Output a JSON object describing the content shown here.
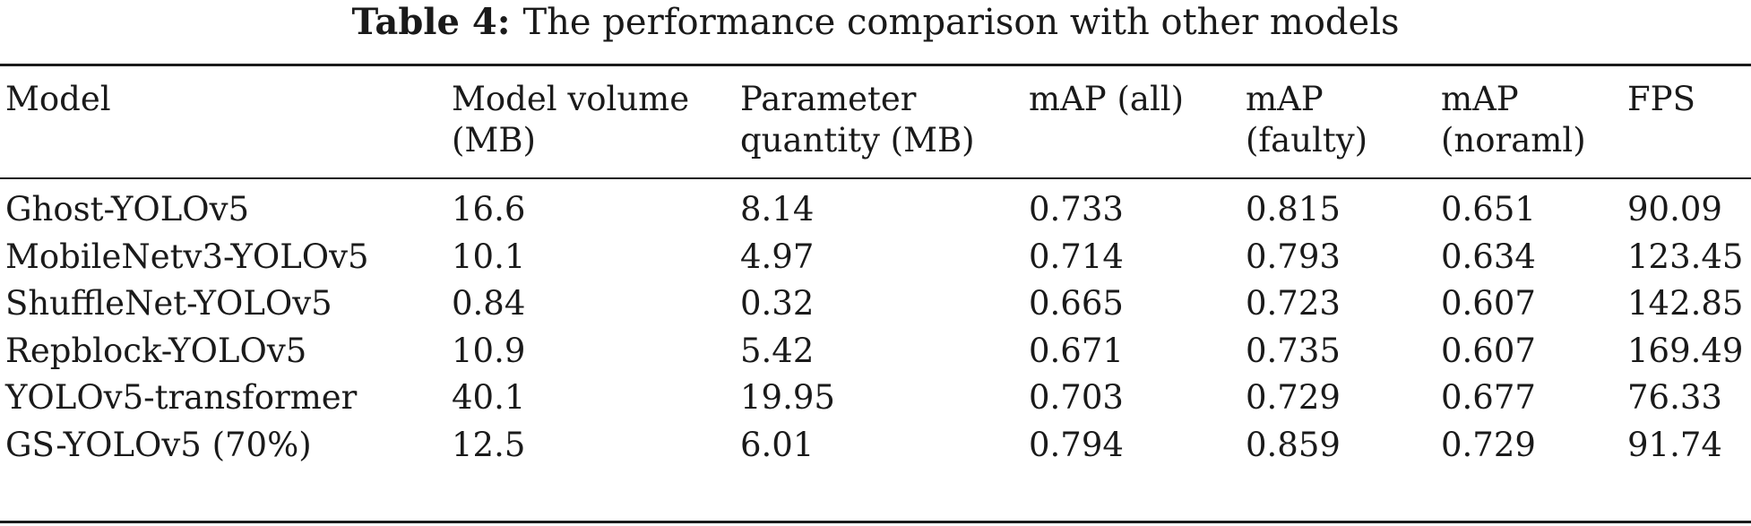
{
  "caption": {
    "label": "Table 4:",
    "text": "The performance comparison with other models"
  },
  "table": {
    "headers": [
      {
        "line1": "Model",
        "line2": ""
      },
      {
        "line1": "Model volume",
        "line2": "(MB)"
      },
      {
        "line1": "Parameter",
        "line2": "quantity (MB)"
      },
      {
        "line1": "mAP (all)",
        "line2": ""
      },
      {
        "line1": "mAP",
        "line2": "(faulty)"
      },
      {
        "line1": "mAP",
        "line2": "(noraml)"
      },
      {
        "line1": "FPS",
        "line2": ""
      }
    ],
    "rows": [
      [
        "Ghost-YOLOv5",
        "16.6",
        "8.14",
        "0.733",
        "0.815",
        "0.651",
        "90.09"
      ],
      [
        "MobileNetv3-YOLOv5",
        "10.1",
        "4.97",
        "0.714",
        "0.793",
        "0.634",
        "123.45"
      ],
      [
        "ShuffleNet-YOLOv5",
        "0.84",
        "0.32",
        "0.665",
        "0.723",
        "0.607",
        "142.85"
      ],
      [
        "Repblock-YOLOv5",
        "10.9",
        "5.42",
        "0.671",
        "0.735",
        "0.607",
        "169.49"
      ],
      [
        "YOLOv5-transformer",
        "40.1",
        "19.95",
        "0.703",
        "0.729",
        "0.677",
        "76.33"
      ],
      [
        "GS-YOLOv5 (70%)",
        "12.5",
        "6.01",
        "0.794",
        "0.859",
        "0.729",
        "91.74"
      ]
    ]
  }
}
